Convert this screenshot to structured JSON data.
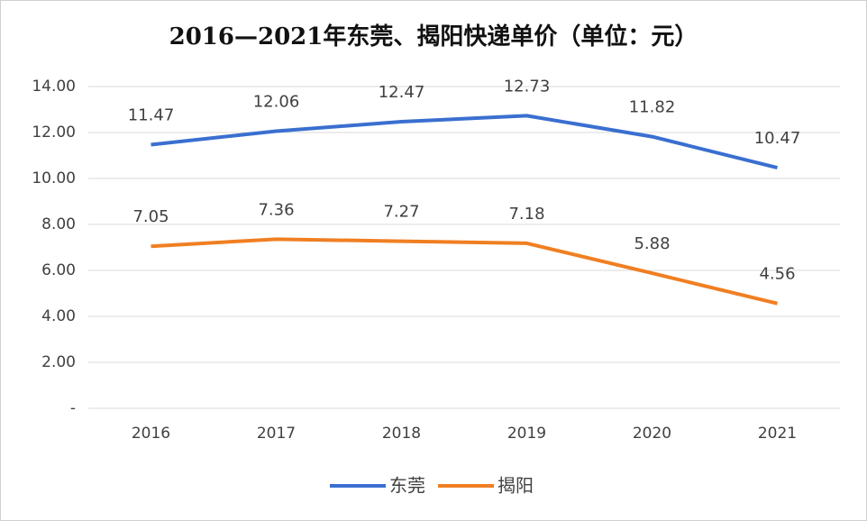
{
  "chart_data": {
    "type": "line",
    "title": "2016—2021年东莞、揭阳快递单价（单位：元）",
    "categories": [
      "2016",
      "2017",
      "2018",
      "2019",
      "2020",
      "2021"
    ],
    "series": [
      {
        "name": "东莞",
        "color": "#3a6fd0",
        "values": [
          11.47,
          12.06,
          12.47,
          12.73,
          11.82,
          10.47
        ]
      },
      {
        "name": "揭阳",
        "color": "#f07f22",
        "values": [
          7.05,
          7.36,
          7.27,
          7.18,
          5.88,
          4.56
        ]
      }
    ],
    "ylim": [
      0,
      14
    ],
    "yticks": [
      {
        "value": 0,
        "label": "-"
      },
      {
        "value": 2,
        "label": "2.00"
      },
      {
        "value": 4,
        "label": "4.00"
      },
      {
        "value": 6,
        "label": "6.00"
      },
      {
        "value": 8,
        "label": "8.00"
      },
      {
        "value": 10,
        "label": "10.00"
      },
      {
        "value": 12,
        "label": "12.00"
      },
      {
        "value": 14,
        "label": "14.00"
      }
    ],
    "grid": true,
    "legend": "bottom"
  }
}
